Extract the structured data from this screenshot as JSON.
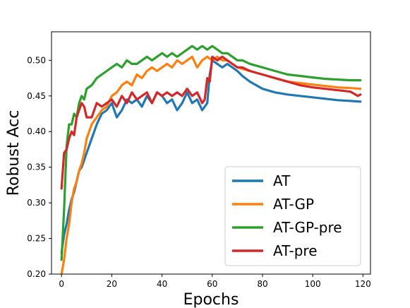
{
  "chart_data": {
    "type": "line",
    "xlabel": "Epochs",
    "ylabel": "Robust Acc",
    "xlim": [
      -4,
      123
    ],
    "ylim": [
      0.2,
      0.54
    ],
    "x_ticks": [
      0,
      20,
      40,
      60,
      80,
      100,
      120
    ],
    "x_tick_labels": [
      "0",
      "20",
      "40",
      "60",
      "80",
      "100",
      "120"
    ],
    "y_ticks": [
      0.2,
      0.25,
      0.3,
      0.35,
      0.4,
      0.45,
      0.5
    ],
    "y_tick_labels": [
      "0.20",
      "0.25",
      "0.30",
      "0.35",
      "0.40",
      "0.45",
      "0.50"
    ],
    "grid": false,
    "legend_position": "bottom-right",
    "series": [
      {
        "name": "AT",
        "color": "#1f77b4",
        "x": [
          0,
          1,
          2,
          3,
          4,
          5,
          6,
          7,
          8,
          9,
          10,
          12,
          14,
          16,
          18,
          20,
          22,
          24,
          26,
          28,
          30,
          32,
          34,
          36,
          38,
          40,
          42,
          44,
          46,
          48,
          50,
          52,
          54,
          56,
          58,
          59,
          60,
          62,
          64,
          66,
          68,
          70,
          72,
          75,
          80,
          85,
          90,
          95,
          100,
          105,
          110,
          115,
          119
        ],
        "values": [
          0.23,
          0.255,
          0.27,
          0.29,
          0.305,
          0.315,
          0.33,
          0.345,
          0.35,
          0.36,
          0.37,
          0.39,
          0.41,
          0.425,
          0.43,
          0.44,
          0.42,
          0.43,
          0.445,
          0.44,
          0.445,
          0.435,
          0.45,
          0.44,
          0.455,
          0.45,
          0.44,
          0.445,
          0.43,
          0.44,
          0.455,
          0.44,
          0.445,
          0.43,
          0.44,
          0.48,
          0.5,
          0.495,
          0.49,
          0.495,
          0.49,
          0.485,
          0.478,
          0.47,
          0.46,
          0.455,
          0.452,
          0.45,
          0.448,
          0.446,
          0.444,
          0.443,
          0.442
        ]
      },
      {
        "name": "AT-GP",
        "color": "#ff7f0e",
        "x": [
          0,
          1,
          2,
          3,
          4,
          5,
          6,
          7,
          8,
          9,
          10,
          12,
          14,
          16,
          18,
          20,
          22,
          24,
          26,
          28,
          30,
          32,
          34,
          36,
          38,
          40,
          42,
          44,
          46,
          48,
          50,
          52,
          54,
          56,
          58,
          60,
          62,
          64,
          66,
          68,
          70,
          72,
          75,
          80,
          85,
          90,
          95,
          100,
          105,
          110,
          115,
          119
        ],
        "values": [
          0.2,
          0.22,
          0.25,
          0.27,
          0.3,
          0.32,
          0.33,
          0.345,
          0.355,
          0.37,
          0.39,
          0.41,
          0.42,
          0.43,
          0.435,
          0.45,
          0.455,
          0.465,
          0.47,
          0.465,
          0.48,
          0.475,
          0.485,
          0.49,
          0.485,
          0.49,
          0.495,
          0.49,
          0.5,
          0.495,
          0.5,
          0.505,
          0.49,
          0.5,
          0.505,
          0.5,
          0.505,
          0.5,
          0.5,
          0.495,
          0.49,
          0.488,
          0.485,
          0.48,
          0.475,
          0.47,
          0.468,
          0.466,
          0.464,
          0.462,
          0.461,
          0.46
        ]
      },
      {
        "name": "AT-GP-pre",
        "color": "#2ca02c",
        "x": [
          0,
          1,
          2,
          3,
          4,
          5,
          6,
          7,
          8,
          9,
          10,
          12,
          14,
          16,
          18,
          20,
          22,
          24,
          26,
          28,
          30,
          32,
          34,
          36,
          38,
          40,
          42,
          44,
          46,
          48,
          50,
          52,
          54,
          56,
          58,
          60,
          62,
          64,
          66,
          68,
          70,
          72,
          75,
          80,
          85,
          90,
          95,
          100,
          105,
          110,
          115,
          119
        ],
        "values": [
          0.22,
          0.29,
          0.38,
          0.41,
          0.41,
          0.425,
          0.42,
          0.44,
          0.45,
          0.445,
          0.46,
          0.465,
          0.475,
          0.48,
          0.485,
          0.49,
          0.495,
          0.49,
          0.5,
          0.495,
          0.495,
          0.5,
          0.505,
          0.5,
          0.505,
          0.51,
          0.505,
          0.51,
          0.505,
          0.51,
          0.515,
          0.52,
          0.515,
          0.52,
          0.515,
          0.52,
          0.515,
          0.51,
          0.51,
          0.505,
          0.5,
          0.5,
          0.495,
          0.49,
          0.485,
          0.48,
          0.478,
          0.476,
          0.474,
          0.473,
          0.472,
          0.472
        ]
      },
      {
        "name": "AT-pre",
        "color": "#d62728",
        "x": [
          0,
          1,
          2,
          3,
          4,
          5,
          6,
          7,
          8,
          9,
          10,
          12,
          14,
          16,
          18,
          20,
          22,
          24,
          26,
          28,
          30,
          32,
          34,
          36,
          38,
          40,
          42,
          44,
          46,
          48,
          50,
          52,
          54,
          56,
          57,
          58,
          59,
          60,
          62,
          64,
          66,
          68,
          70,
          72,
          75,
          80,
          85,
          90,
          95,
          100,
          105,
          110,
          115,
          118,
          119
        ],
        "values": [
          0.32,
          0.37,
          0.375,
          0.39,
          0.4,
          0.395,
          0.42,
          0.43,
          0.44,
          0.435,
          0.42,
          0.42,
          0.44,
          0.435,
          0.44,
          0.445,
          0.435,
          0.45,
          0.44,
          0.455,
          0.445,
          0.45,
          0.455,
          0.44,
          0.455,
          0.45,
          0.455,
          0.45,
          0.455,
          0.45,
          0.46,
          0.45,
          0.455,
          0.44,
          0.445,
          0.475,
          0.47,
          0.505,
          0.5,
          0.505,
          0.5,
          0.495,
          0.49,
          0.49,
          0.485,
          0.48,
          0.475,
          0.47,
          0.465,
          0.462,
          0.46,
          0.458,
          0.456,
          0.45,
          0.452
        ]
      }
    ]
  }
}
